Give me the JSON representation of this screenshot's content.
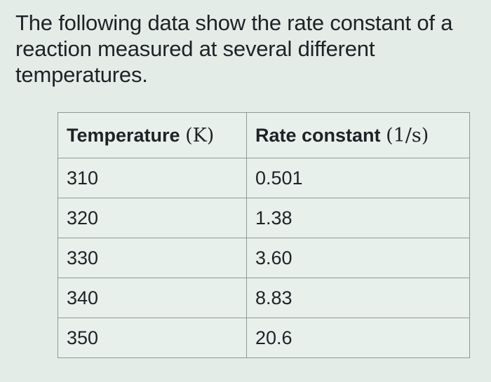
{
  "intro": {
    "text": "The following data show the rate constant of a reaction measured at several different temperatures."
  },
  "table": {
    "headers": [
      {
        "label": "Temperature",
        "unit": "(K)"
      },
      {
        "label": "Rate constant",
        "unit": "(1/s)"
      }
    ],
    "rows": [
      [
        "310",
        "0.501"
      ],
      [
        "320",
        "1.38"
      ],
      [
        "330",
        "3.60"
      ],
      [
        "340",
        "8.83"
      ],
      [
        "350",
        "20.6"
      ]
    ]
  }
}
